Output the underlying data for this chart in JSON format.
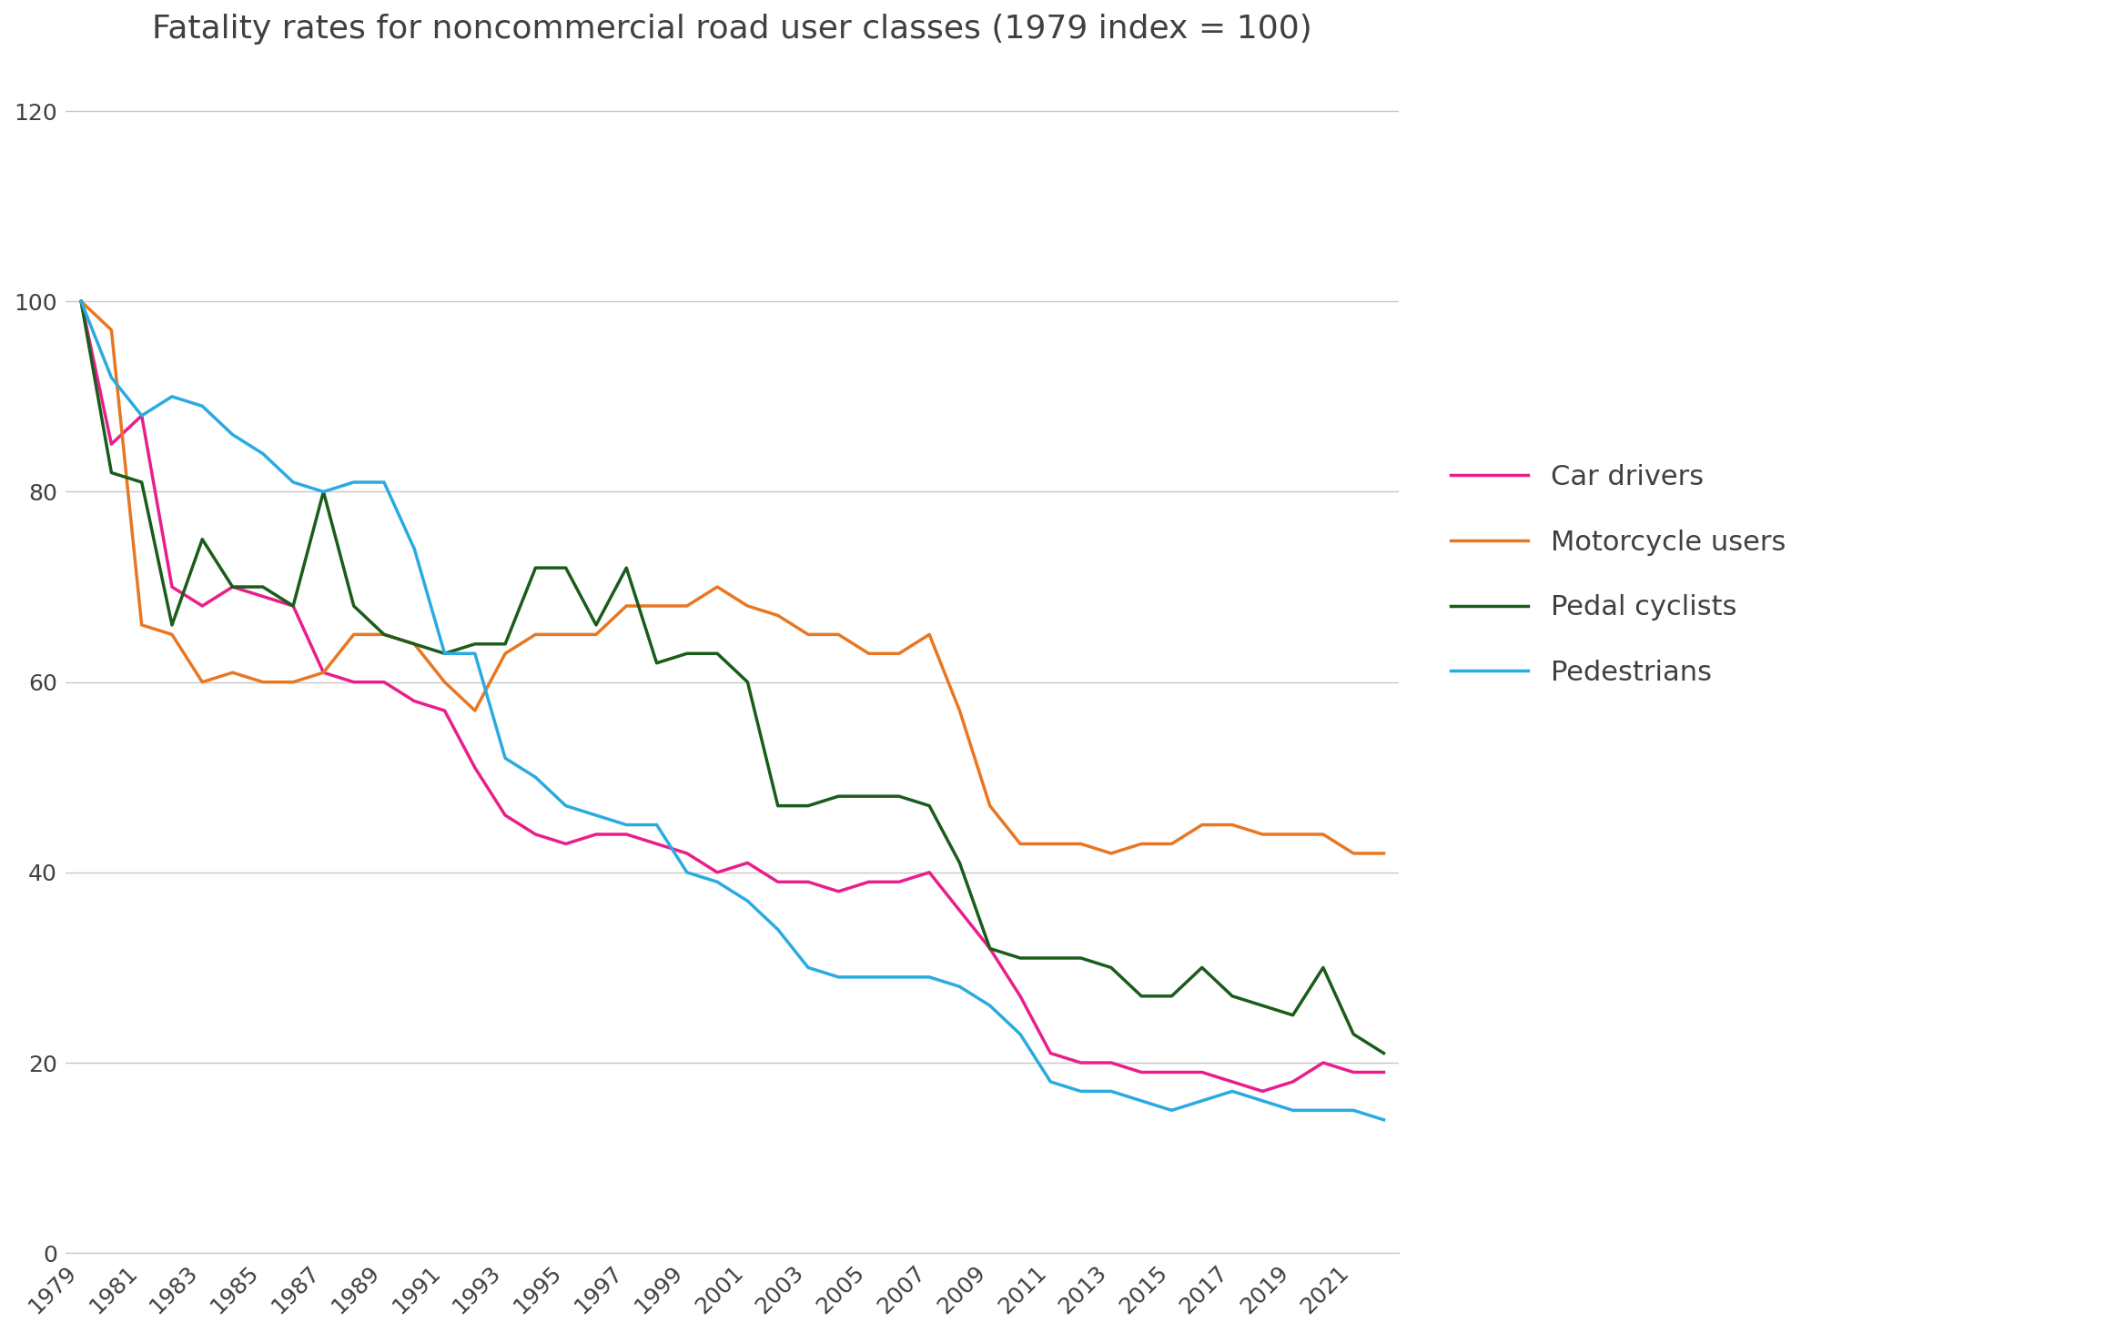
{
  "title": "Fatality rates for noncommercial road user classes (1979 index = 100)",
  "years": [
    1979,
    1980,
    1981,
    1982,
    1983,
    1984,
    1985,
    1986,
    1987,
    1988,
    1989,
    1990,
    1991,
    1992,
    1993,
    1994,
    1995,
    1996,
    1997,
    1998,
    1999,
    2000,
    2001,
    2002,
    2003,
    2004,
    2005,
    2006,
    2007,
    2008,
    2009,
    2010,
    2011,
    2012,
    2013,
    2014,
    2015,
    2016,
    2017,
    2018,
    2019,
    2020,
    2021,
    2022
  ],
  "car_drivers": [
    100,
    85,
    88,
    70,
    68,
    70,
    69,
    68,
    61,
    60,
    60,
    58,
    57,
    51,
    46,
    44,
    43,
    44,
    44,
    43,
    42,
    40,
    41,
    39,
    39,
    38,
    39,
    39,
    40,
    36,
    32,
    27,
    21,
    20,
    20,
    19,
    19,
    19,
    18,
    17,
    18,
    20,
    19,
    19
  ],
  "motorcycle_users": [
    100,
    97,
    66,
    65,
    60,
    61,
    60,
    60,
    61,
    65,
    65,
    64,
    60,
    57,
    63,
    65,
    65,
    65,
    68,
    68,
    68,
    70,
    68,
    67,
    65,
    65,
    63,
    63,
    65,
    57,
    47,
    43,
    43,
    43,
    42,
    43,
    43,
    45,
    45,
    44,
    44,
    44,
    42,
    42
  ],
  "pedal_cyclists": [
    100,
    82,
    81,
    66,
    75,
    70,
    70,
    68,
    80,
    68,
    65,
    64,
    63,
    64,
    64,
    72,
    72,
    66,
    72,
    62,
    63,
    63,
    60,
    47,
    47,
    48,
    48,
    48,
    47,
    41,
    32,
    31,
    31,
    31,
    30,
    27,
    27,
    30,
    27,
    26,
    25,
    30,
    23,
    21
  ],
  "pedestrians": [
    100,
    92,
    88,
    90,
    89,
    86,
    84,
    81,
    80,
    81,
    81,
    74,
    63,
    63,
    52,
    50,
    47,
    46,
    45,
    45,
    40,
    39,
    37,
    34,
    30,
    29,
    29,
    29,
    29,
    28,
    26,
    23,
    18,
    17,
    17,
    16,
    15,
    16,
    17,
    16,
    15,
    15,
    15,
    14
  ],
  "colors": {
    "car_drivers": "#e91e8c",
    "motorcycle_users": "#e87722",
    "pedal_cyclists": "#1a5c1a",
    "pedestrians": "#29abe2"
  },
  "ylim": [
    0,
    125
  ],
  "yticks": [
    0,
    20,
    40,
    60,
    80,
    100,
    120
  ],
  "xtick_step": 2,
  "background_color": "#ffffff",
  "grid_color": "#c8c8c8",
  "title_color": "#404040",
  "tick_color": "#404040",
  "line_width": 2.5,
  "legend_labels": [
    "Car drivers",
    "Motorcycle users",
    "Pedal cyclists",
    "Pedestrians"
  ],
  "legend_fontsize": 22,
  "title_fontsize": 26,
  "tick_fontsize": 18
}
